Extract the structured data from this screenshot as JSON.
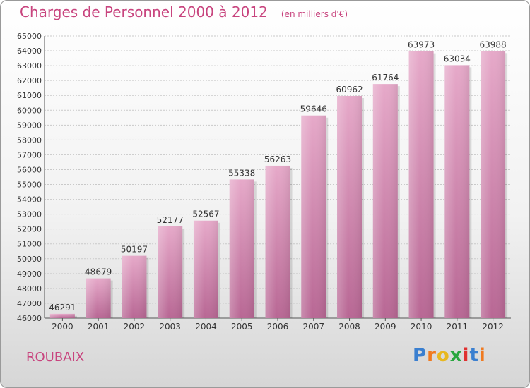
{
  "title": "Charges de Personnel 2000 à 2012",
  "subtitle": "(en milliers d'€)",
  "city": "ROUBAIX",
  "logo": {
    "letters": [
      "P",
      "r",
      "o",
      "x",
      "i",
      "t",
      "i"
    ],
    "colors": [
      "#3a7fd0",
      "#f07a20",
      "#e8b820",
      "#2aa640",
      "#e03030",
      "#3a7fd0",
      "#f07a20"
    ]
  },
  "colors": {
    "bar": "#d98ab5",
    "bar_light": "#e6a9c9",
    "bar_dark": "#b86794",
    "accent": "#c8447e"
  },
  "chart_data": {
    "type": "bar",
    "categories": [
      "2000",
      "2001",
      "2002",
      "2003",
      "2004",
      "2005",
      "2006",
      "2007",
      "2008",
      "2009",
      "2010",
      "2011",
      "2012"
    ],
    "values": [
      46291,
      48679,
      50197,
      52177,
      52567,
      55338,
      56263,
      59646,
      60962,
      61764,
      63973,
      63034,
      63988
    ],
    "ylim": [
      46000,
      65000
    ],
    "ytick_step": 1000,
    "grid": true
  }
}
